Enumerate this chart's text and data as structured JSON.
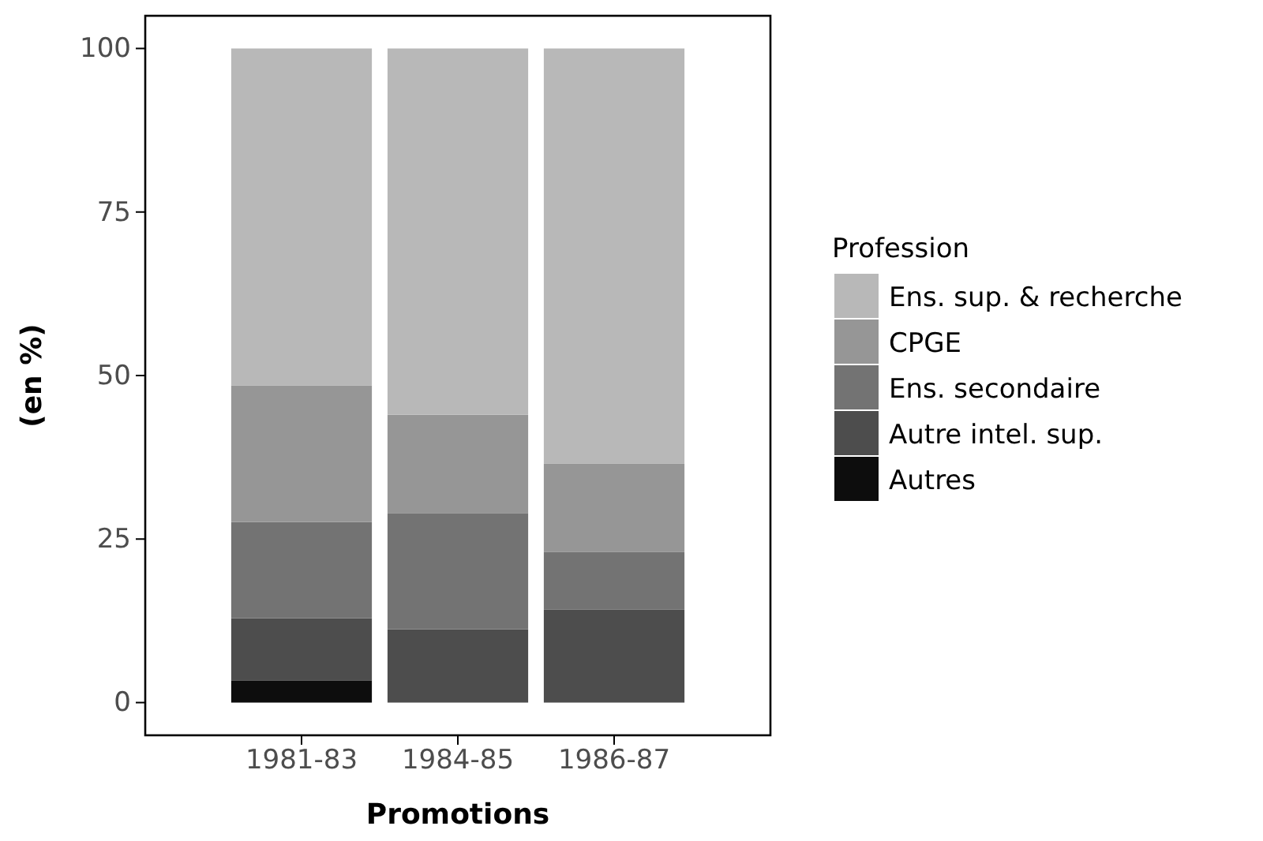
{
  "chart_data": {
    "type": "bar",
    "stacked": true,
    "xlabel": "Promotions",
    "ylabel": "(en %)",
    "legend_title": "Profession",
    "legend": "right",
    "categories": [
      "1981-83",
      "1984-85",
      "1986-87"
    ],
    "series": [
      {
        "name": "Autres",
        "color": "#0d0d0d",
        "values": [
          3.4,
          0,
          0
        ]
      },
      {
        "name": "Autre intel. sup.",
        "color": "#4d4d4d",
        "values": [
          9.5,
          11.2,
          14.2
        ]
      },
      {
        "name": "Ens. secondaire",
        "color": "#737373",
        "values": [
          14.7,
          17.7,
          8.8
        ]
      },
      {
        "name": "CPGE",
        "color": "#969696",
        "values": [
          20.9,
          15.1,
          13.5
        ]
      },
      {
        "name": "Ens. sup. & recherche",
        "color": "#b8b8b8",
        "values": [
          51.5,
          56.0,
          63.5
        ]
      }
    ],
    "ylim": [
      -5,
      105
    ],
    "yticks": [
      0,
      25,
      50,
      75,
      100
    ],
    "grid": false
  }
}
